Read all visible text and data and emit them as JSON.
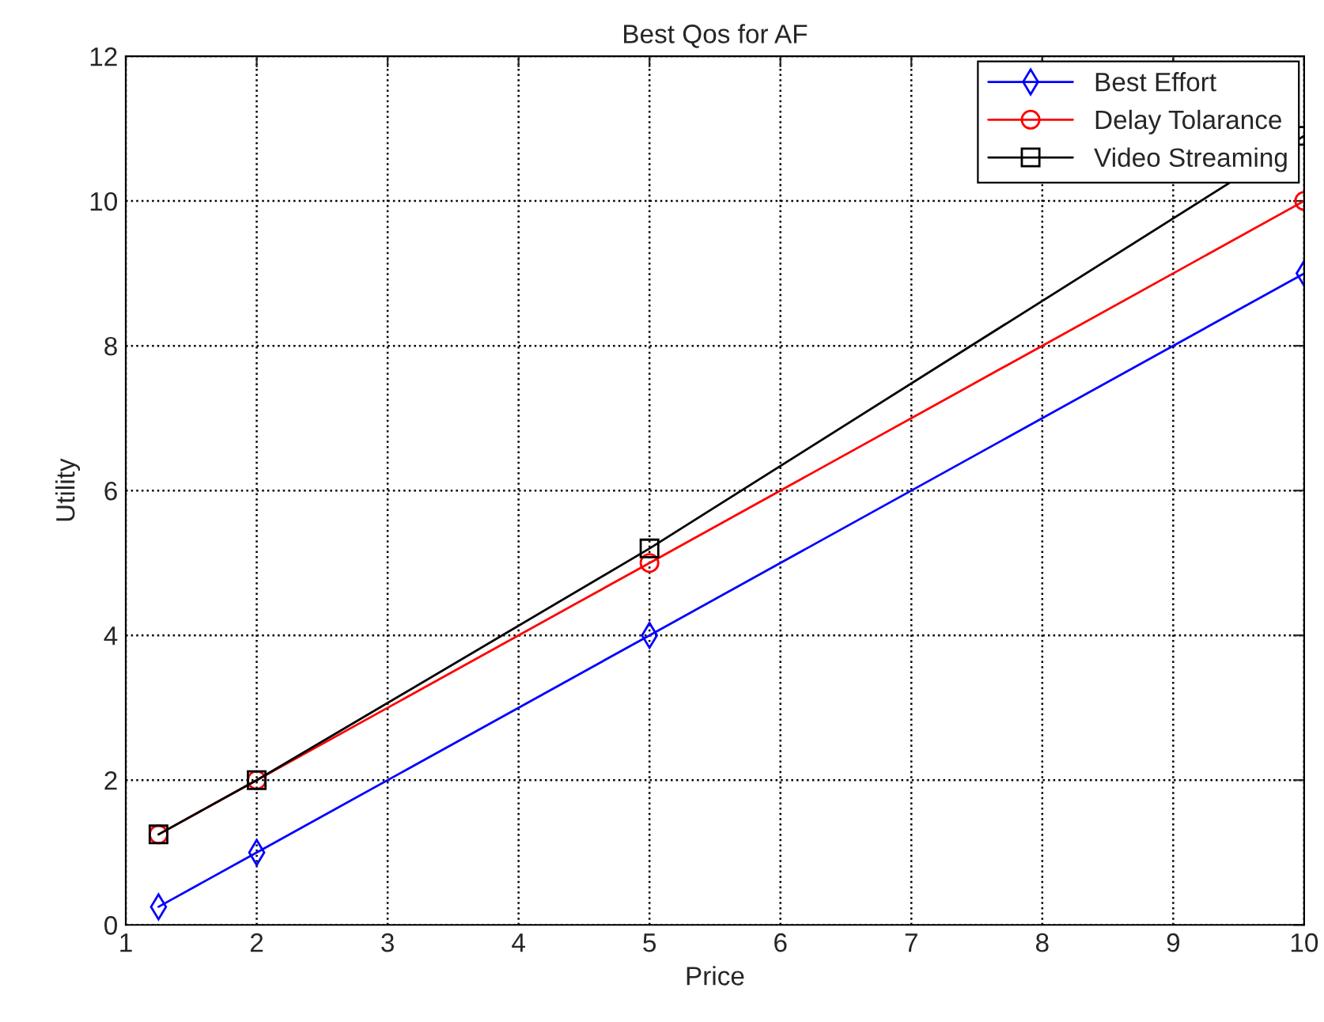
{
  "chart_data": {
    "type": "line",
    "title": "Best Qos for AF",
    "xlabel": "Price",
    "ylabel": "Utility",
    "x": [
      1.25,
      2,
      5,
      10
    ],
    "series": [
      {
        "name": "Best Effort",
        "color": "#0000ff",
        "marker": "diamond",
        "values": [
          0.25,
          1,
          4,
          9
        ]
      },
      {
        "name": "Delay Tolarance",
        "color": "#ff0000",
        "marker": "circle",
        "values": [
          1.25,
          2,
          5,
          10
        ]
      },
      {
        "name": "Video Streaming",
        "color": "#000000",
        "marker": "square",
        "values": [
          1.25,
          2,
          5.2,
          10.9
        ]
      }
    ],
    "xlim": [
      1,
      10
    ],
    "ylim": [
      0,
      12
    ],
    "xticks": [
      1,
      2,
      3,
      4,
      5,
      6,
      7,
      8,
      9,
      10
    ],
    "yticks": [
      0,
      2,
      4,
      6,
      8,
      10,
      12
    ],
    "grid": true,
    "legend": "top right",
    "line_style": "solid"
  }
}
